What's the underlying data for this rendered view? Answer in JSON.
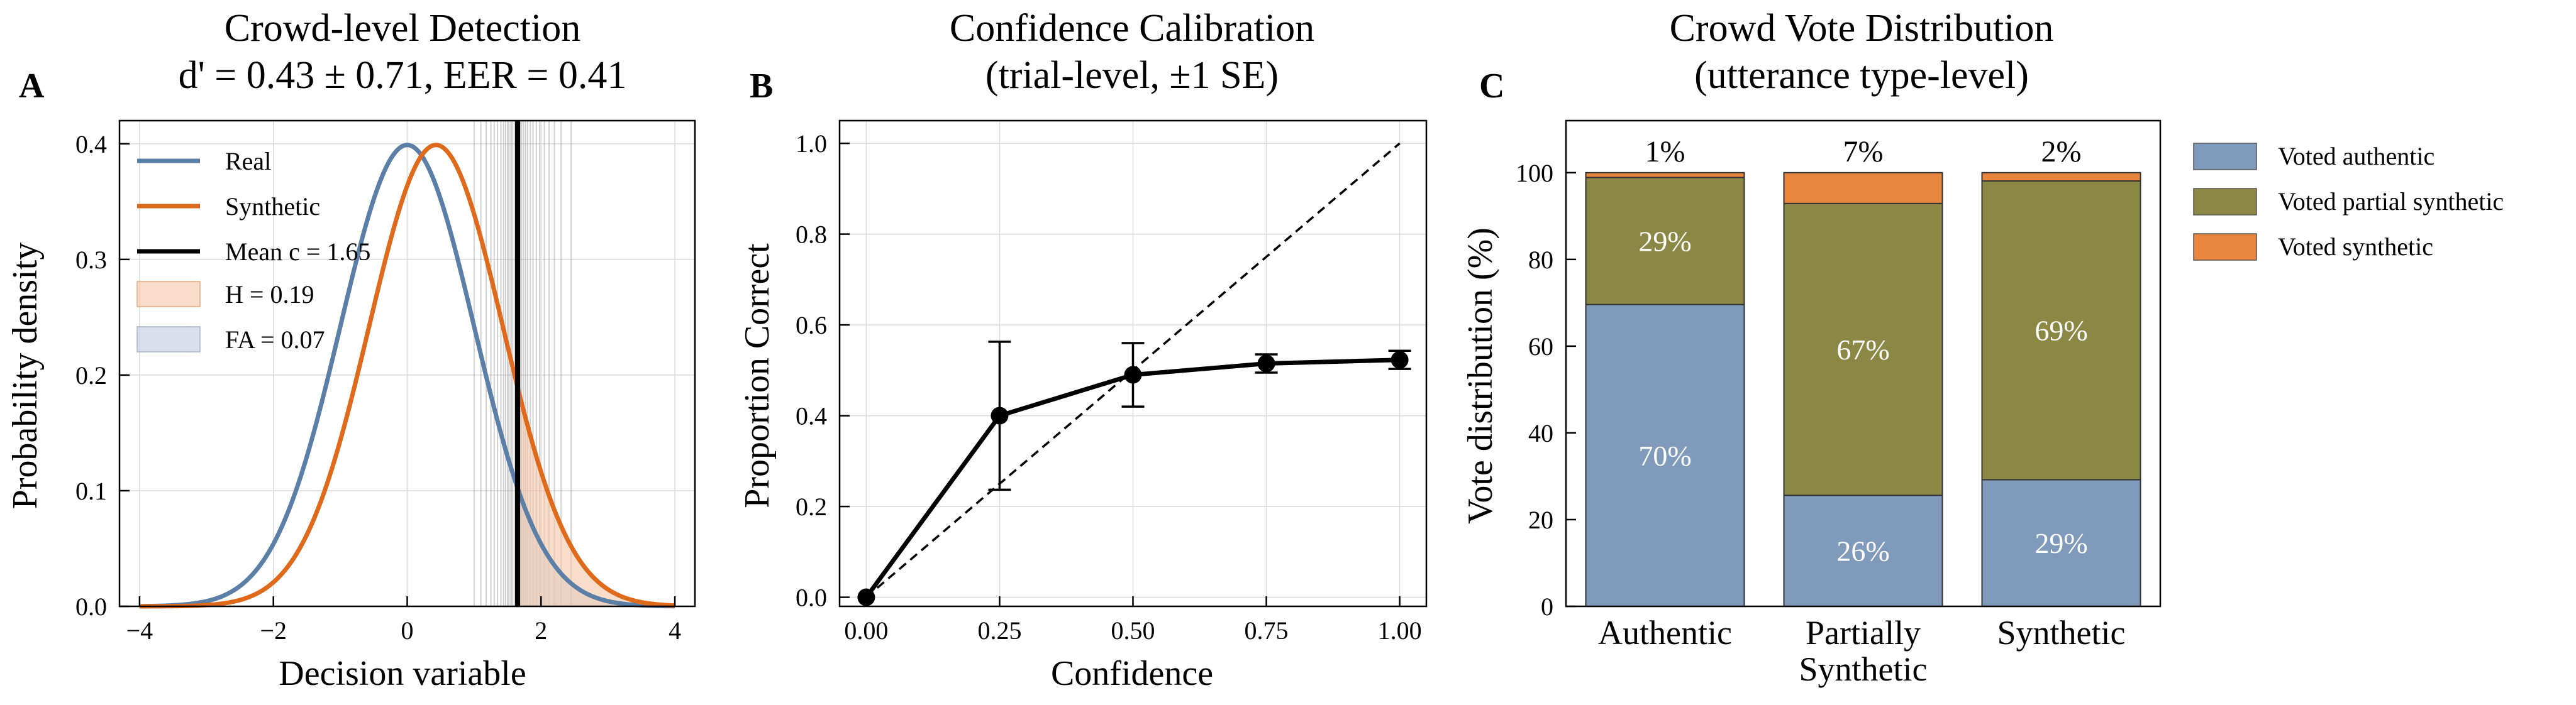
{
  "chart_data": [
    {
      "panel": "A",
      "type": "line",
      "title": [
        "Crowd-level Detection",
        "d' = 0.43 ± 0.71,  EER = 0.41"
      ],
      "xlabel": "Decision variable",
      "ylabel": "Probability density",
      "xlim": [
        -4.3,
        4.3
      ],
      "ylim": [
        0,
        0.42
      ],
      "xticks": [
        -4,
        -2,
        0,
        2,
        4
      ],
      "xtick_labels": [
        "−4",
        "−2",
        "0",
        "2",
        "4"
      ],
      "yticks": [
        0.0,
        0.1,
        0.2,
        0.3,
        0.4
      ],
      "ytick_labels": [
        "0.0",
        "0.1",
        "0.2",
        "0.3",
        "0.4"
      ],
      "grid": true,
      "legend_position": "top-left",
      "series": [
        {
          "name": "Real",
          "kind": "normal_pdf",
          "mean": 0.0,
          "sd": 1.0,
          "color": "#5b7fa6"
        },
        {
          "name": "Synthetic",
          "kind": "normal_pdf",
          "mean": 0.43,
          "sd": 1.0,
          "color": "#e06a1b"
        }
      ],
      "criterion": {
        "name": "Mean c = 1.65",
        "value": 1.65,
        "color": "#000000"
      },
      "hit_rate": {
        "name": "H = 0.19",
        "value": 0.19,
        "color": "#f4c6a6"
      },
      "false_alarm": {
        "name": "FA = 0.07",
        "value": 0.07,
        "color": "#c9d3e3"
      },
      "individual_criteria": [
        1.0,
        1.1,
        1.18,
        1.25,
        1.3,
        1.35,
        1.4,
        1.44,
        1.47,
        1.5,
        1.52,
        1.55,
        1.57,
        1.6,
        1.62,
        1.64,
        1.67,
        1.69,
        1.71,
        1.74,
        1.77,
        1.8,
        1.84,
        1.88,
        1.93,
        1.98,
        2.05,
        2.12,
        2.2,
        2.3,
        2.45
      ]
    },
    {
      "panel": "B",
      "type": "line",
      "title": [
        "Confidence Calibration",
        "(trial-level, ±1 SE)"
      ],
      "xlabel": "Confidence",
      "ylabel": "Proportion Correct",
      "xlim": [
        -0.05,
        1.05
      ],
      "ylim": [
        -0.02,
        1.05
      ],
      "xticks": [
        0.0,
        0.25,
        0.5,
        0.75,
        1.0
      ],
      "xtick_labels": [
        "0.00",
        "0.25",
        "0.50",
        "0.75",
        "1.00"
      ],
      "yticks": [
        0.0,
        0.2,
        0.4,
        0.6,
        0.8,
        1.0
      ],
      "ytick_labels": [
        "0.0",
        "0.2",
        "0.4",
        "0.6",
        "0.8",
        "1.0"
      ],
      "grid": true,
      "x": [
        0.0,
        0.25,
        0.5,
        0.75,
        1.0
      ],
      "y": [
        0.0,
        0.4,
        0.49,
        0.515,
        0.523
      ],
      "se": [
        0.0,
        0.163,
        0.07,
        0.02,
        0.02
      ],
      "reference_line": [
        [
          0,
          0
        ],
        [
          1,
          1
        ]
      ]
    },
    {
      "panel": "C",
      "type": "bar",
      "stacked": true,
      "title": [
        "Crowd Vote Distribution",
        "(utterance type-level)"
      ],
      "xlabel": "",
      "ylabel": "Vote distribution (%)",
      "ylim": [
        0,
        112
      ],
      "yticks": [
        0,
        20,
        40,
        60,
        80,
        100
      ],
      "ytick_labels": [
        "0",
        "20",
        "40",
        "60",
        "80",
        "100"
      ],
      "categories": [
        [
          "Authentic"
        ],
        [
          "Partially",
          "Synthetic"
        ],
        [
          "Synthetic"
        ]
      ],
      "legend_position": "outside-right",
      "series": [
        {
          "name": "Voted authentic",
          "values": [
            69.6,
            25.6,
            29.2
          ],
          "labels": [
            "70%",
            "26%",
            "29%"
          ],
          "color": "#7f9aba"
        },
        {
          "name": "Voted partial synthetic",
          "values": [
            29.3,
            67.3,
            68.9
          ],
          "labels": [
            "29%",
            "67%",
            "69%"
          ],
          "color": "#8b8745"
        },
        {
          "name": "Voted synthetic",
          "values": [
            1.1,
            7.1,
            1.9
          ],
          "labels": [
            "1%",
            "7%",
            "2%"
          ],
          "color": "#e8853f"
        }
      ]
    }
  ]
}
